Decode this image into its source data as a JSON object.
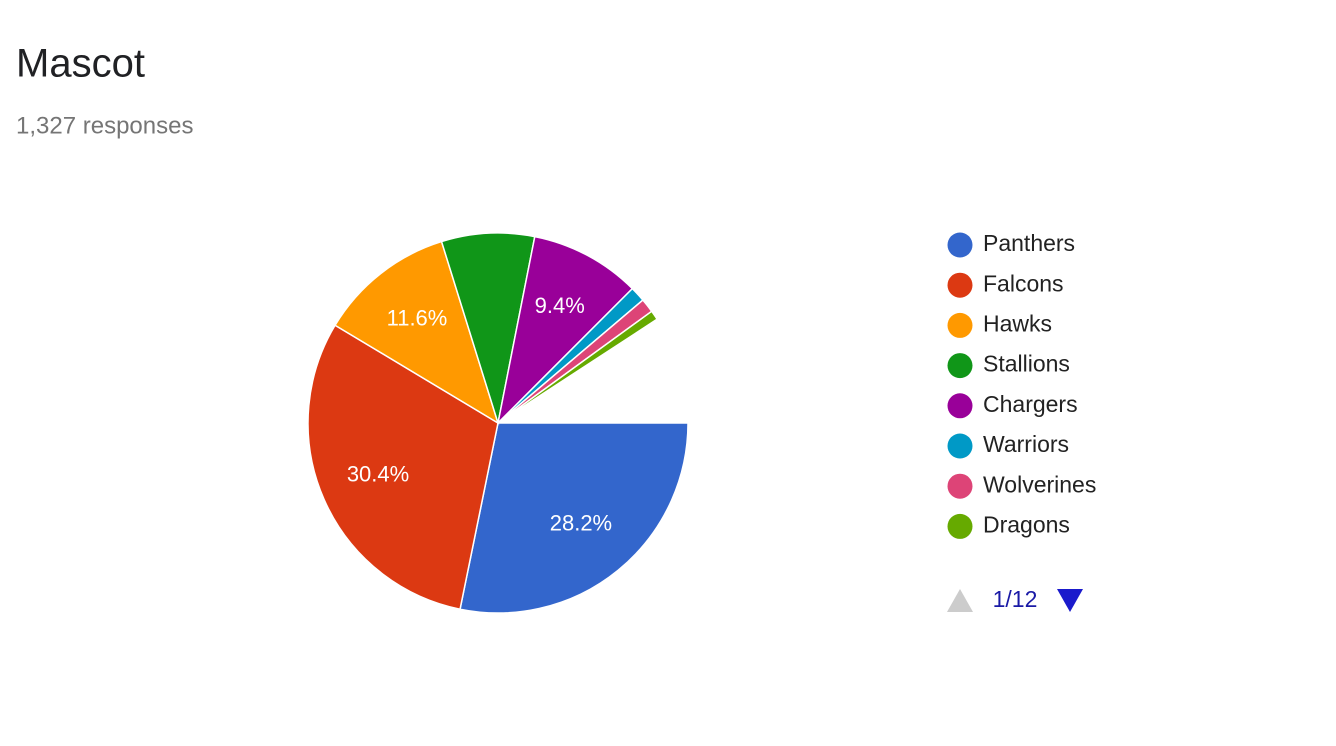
{
  "chart_data": {
    "type": "pie",
    "title": "Mascot",
    "subtitle": "1,327 responses",
    "categories": [
      "Panthers",
      "Falcons",
      "Hawks",
      "Stallions",
      "Chargers",
      "Warriors",
      "Wolverines",
      "Dragons"
    ],
    "values": [
      28.2,
      30.4,
      11.6,
      7.9,
      9.4,
      1.3,
      1.2,
      0.8
    ],
    "value_labels": [
      "28.2%",
      "30.4%",
      "11.6%",
      null,
      "9.4%",
      null,
      null,
      null
    ],
    "colors": [
      "#3366cc",
      "#dc3912",
      "#ff9900",
      "#109618",
      "#990099",
      "#0099c6",
      "#dd4477",
      "#66aa00"
    ],
    "legend": "right",
    "legend_page": "1/12"
  }
}
